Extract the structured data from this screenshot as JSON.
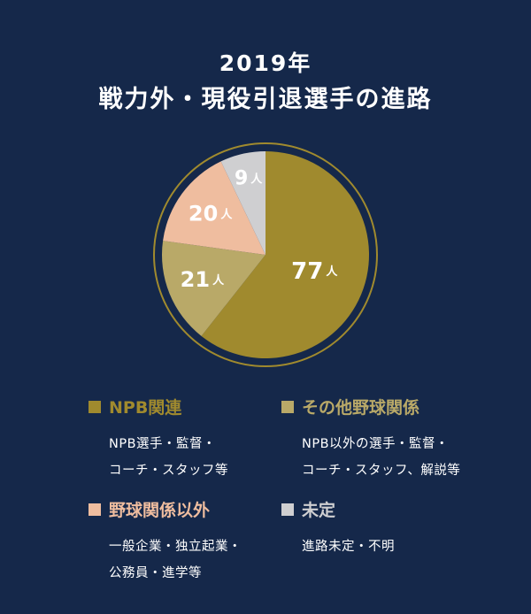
{
  "title_line1": "2019年",
  "title_line2": "戦力外・現役引退選手の進路",
  "unit": "人",
  "chart_data": {
    "type": "pie",
    "title": "2019年 戦力外・現役引退選手の進路",
    "start": "12 o'clock, clockwise",
    "slices": [
      {
        "label": "NPB関連",
        "value": 77,
        "color": "#a08a2e"
      },
      {
        "label": "その他野球関係",
        "value": 21,
        "color": "#b9a968"
      },
      {
        "label": "野球関係以外",
        "value": 20,
        "color": "#efbd9f"
      },
      {
        "label": "未定",
        "value": 9,
        "color": "#cfcfd1"
      }
    ],
    "ring_color": "#a08a2e"
  },
  "legend": [
    {
      "label": "NPB関連",
      "color": "#a08a2e",
      "desc": [
        "NPB選手・監督・",
        "コーチ・スタッフ等"
      ]
    },
    {
      "label": "その他野球関係",
      "color": "#b9a968",
      "desc": [
        "NPB以外の選手・監督・",
        "コーチ・スタッフ、解説等"
      ]
    },
    {
      "label": "野球関係以外",
      "color": "#efbd9f",
      "desc": [
        "一般企業・独立起業・",
        "公務員・進学等"
      ]
    },
    {
      "label": "未定",
      "color": "#cfcfd1",
      "desc": [
        "進路未定・不明"
      ]
    }
  ]
}
